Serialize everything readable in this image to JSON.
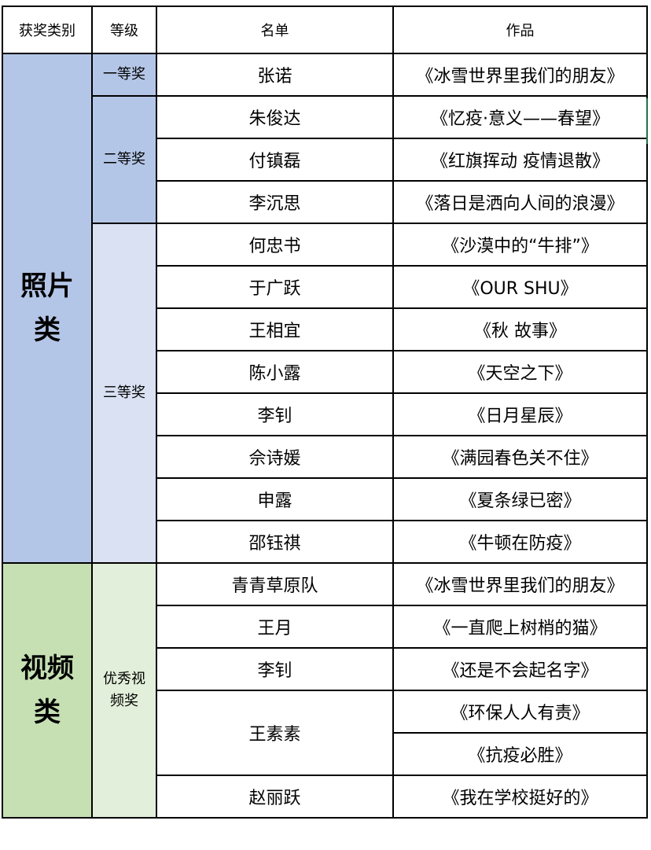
{
  "header": {
    "category": "获奖类别",
    "grade": "等级",
    "names": "名单",
    "works": "作品"
  },
  "colors": {
    "photo_category": "#b4c6e7",
    "photo_grade_1_2": "#b4c6e7",
    "photo_grade_3": "#d9e1f2",
    "video_category": "#c6e0b4",
    "video_grade": "#e2efda"
  },
  "photo": {
    "category": "照片类",
    "grade1": "一等奖",
    "grade2": "二等奖",
    "grade3": "三等奖",
    "rows": [
      {
        "name": "张诺",
        "work": "《冰雪世界里我们的朋友》"
      },
      {
        "name": "朱俊达",
        "work": "《忆疫·意义——春望》"
      },
      {
        "name": "付镇磊",
        "work": "《红旗挥动 疫情退散》"
      },
      {
        "name": "李沉思",
        "work": "《落日是洒向人间的浪漫》"
      },
      {
        "name": "何忠书",
        "work": "《沙漠中的“牛排”》"
      },
      {
        "name": "于广跃",
        "work": "《OUR SHU》"
      },
      {
        "name": "王相宜",
        "work": "《秋 故事》"
      },
      {
        "name": "陈小露",
        "work": "《天空之下》"
      },
      {
        "name": "李钊",
        "work": "《日月星辰》"
      },
      {
        "name": "佘诗媛",
        "work": "《满园春色关不住》"
      },
      {
        "name": "申露",
        "work": "《夏条绿已密》"
      },
      {
        "name": "邵钰祺",
        "work": "《牛顿在防疫》"
      }
    ]
  },
  "video": {
    "category": "视频类",
    "grade": "优秀视频奖",
    "rows": [
      {
        "name": "青青草原队",
        "work": "《冰雪世界里我们的朋友》"
      },
      {
        "name": "王月",
        "work": "《一直爬上树梢的猫》"
      },
      {
        "name": "李钊",
        "work": "《还是不会起名字》"
      },
      {
        "name": "王素素",
        "works": [
          "《环保人人有责》",
          "《抗疫必胜》"
        ]
      },
      {
        "name": "赵丽跃",
        "work": "《我在学校挺好的》"
      }
    ]
  }
}
